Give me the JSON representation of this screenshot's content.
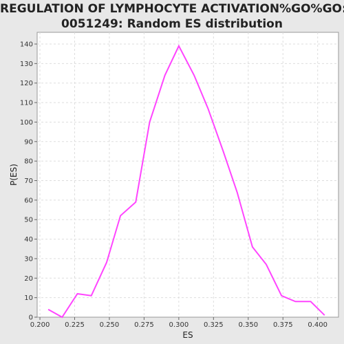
{
  "title_line1": "REGULATION OF LYMPHOCYTE ACTIVATION%GO%GO:",
  "title_line2": "0051249: Random ES distribution",
  "colors": {
    "line": "#ff44ff",
    "plot_bg": "#ffffff",
    "page_bg": "#e8e8e8",
    "grid": "#dddddd"
  },
  "chart_data": {
    "type": "line",
    "xlabel": "ES",
    "ylabel": "P(ES)",
    "xlim": [
      0.198,
      0.415
    ],
    "ylim": [
      0,
      146
    ],
    "grid": true,
    "x_ticks": [
      "0.200",
      "0.225",
      "0.250",
      "0.275",
      "0.300",
      "0.325",
      "0.350",
      "0.375",
      "0.400"
    ],
    "y_ticks": [
      "0",
      "10",
      "20",
      "30",
      "40",
      "50",
      "60",
      "70",
      "80",
      "90",
      "100",
      "110",
      "120",
      "130",
      "140"
    ],
    "series": [
      {
        "x": [
          0.206,
          0.216,
          0.227,
          0.237,
          0.248,
          0.258,
          0.269,
          0.279,
          0.29,
          0.3,
          0.311,
          0.321,
          0.332,
          0.342,
          0.353,
          0.363,
          0.374,
          0.384,
          0.395,
          0.405
        ],
        "y": [
          4,
          0,
          12,
          11,
          28,
          52,
          59,
          100,
          124,
          139,
          124,
          107,
          85,
          64,
          36,
          27,
          11,
          8,
          8,
          1
        ]
      }
    ]
  }
}
